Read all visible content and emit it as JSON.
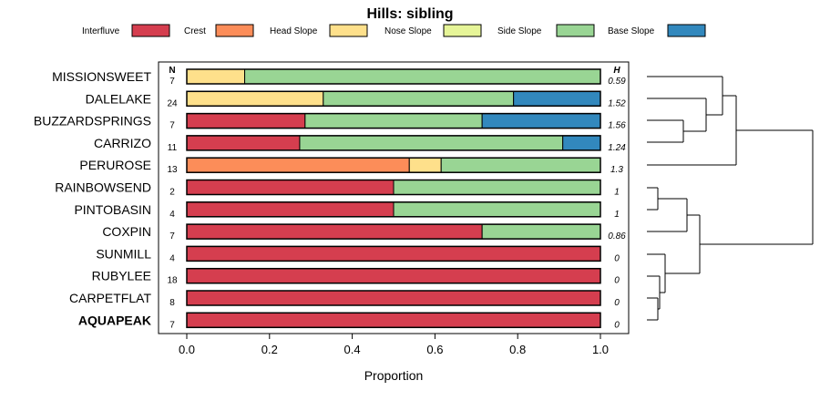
{
  "chart_data": {
    "type": "bar",
    "stacked": true,
    "orientation": "horizontal",
    "title": "Hills: sibling",
    "xlabel": "Proportion",
    "xlim": [
      0,
      1
    ],
    "xticks": [
      0,
      0.2,
      0.4,
      0.6,
      0.8,
      1.0
    ],
    "xtick_labels": [
      "0.0",
      "0.2",
      "0.4",
      "0.6",
      "0.8",
      "1.0"
    ],
    "n_header": "N",
    "h_header": "H",
    "legend": [
      {
        "name": "Interfluve",
        "color": "#D53E4F"
      },
      {
        "name": "Crest",
        "color": "#FC8D59"
      },
      {
        "name": "Head Slope",
        "color": "#FEE08B"
      },
      {
        "name": "Nose Slope",
        "color": "#E6F598"
      },
      {
        "name": "Side Slope",
        "color": "#99D594"
      },
      {
        "name": "Base Slope",
        "color": "#3288BD"
      }
    ],
    "rows": [
      {
        "label": "MISSIONSWEET",
        "n": "7",
        "h": "0.59",
        "bold": false,
        "values": [
          0,
          0,
          0.14,
          0,
          0.86,
          0
        ]
      },
      {
        "label": "DALELAKE",
        "n": "24",
        "h": "1.52",
        "bold": false,
        "values": [
          0,
          0,
          0.33,
          0,
          0.46,
          0.21
        ]
      },
      {
        "label": "BUZZARDSPRINGS",
        "n": "7",
        "h": "1.56",
        "bold": false,
        "values": [
          0.286,
          0,
          0,
          0,
          0.428,
          0.286
        ]
      },
      {
        "label": "CARRIZO",
        "n": "11",
        "h": "1.24",
        "bold": false,
        "values": [
          0.273,
          0,
          0,
          0,
          0.636,
          0.091
        ]
      },
      {
        "label": "PERUROSE",
        "n": "13",
        "h": "1.3",
        "bold": false,
        "values": [
          0,
          0.538,
          0.077,
          0,
          0.385,
          0
        ]
      },
      {
        "label": "RAINBOWSEND",
        "n": "2",
        "h": "1",
        "bold": false,
        "values": [
          0.5,
          0,
          0,
          0,
          0.5,
          0
        ]
      },
      {
        "label": "PINTOBASIN",
        "n": "4",
        "h": "1",
        "bold": false,
        "values": [
          0.5,
          0,
          0,
          0,
          0.5,
          0
        ]
      },
      {
        "label": "COXPIN",
        "n": "7",
        "h": "0.86",
        "bold": false,
        "values": [
          0.714,
          0,
          0,
          0,
          0.286,
          0
        ]
      },
      {
        "label": "SUNMILL",
        "n": "4",
        "h": "0",
        "bold": false,
        "values": [
          1,
          0,
          0,
          0,
          0,
          0
        ]
      },
      {
        "label": "RUBYLEE",
        "n": "18",
        "h": "0",
        "bold": false,
        "values": [
          1,
          0,
          0,
          0,
          0,
          0
        ]
      },
      {
        "label": "CARPETFLAT",
        "n": "8",
        "h": "0",
        "bold": false,
        "values": [
          1,
          0,
          0,
          0,
          0,
          0
        ]
      },
      {
        "label": "AQUAPEAK",
        "n": "7",
        "h": "0",
        "bold": true,
        "values": [
          1,
          0,
          0,
          0,
          0,
          0
        ]
      }
    ]
  }
}
